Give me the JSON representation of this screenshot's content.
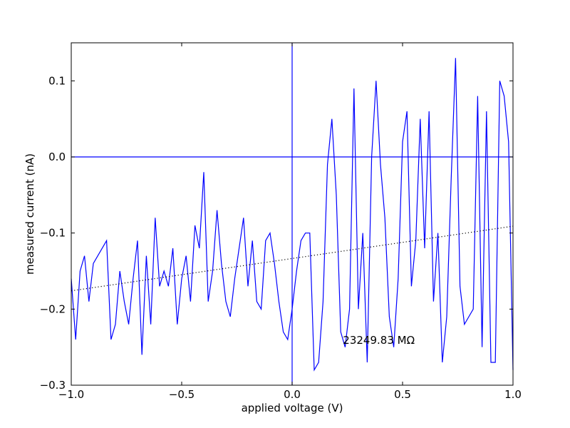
{
  "chart_data": {
    "type": "line",
    "title": "",
    "xlabel": "applied voltage (V)",
    "ylabel": "measured current (nA)",
    "xlim": [
      -1.0,
      1.0
    ],
    "ylim": [
      -0.3,
      0.15
    ],
    "xticks": [
      -1.0,
      -0.5,
      0.0,
      0.5,
      1.0
    ],
    "xtick_labels": [
      "−1.0",
      "−0.5",
      "0.0",
      "0.5",
      "1.0"
    ],
    "yticks": [
      -0.3,
      -0.2,
      -0.1,
      0.0,
      0.1
    ],
    "ytick_labels": [
      "−0.3",
      "−0.2",
      "−0.1",
      "0.0",
      "0.1"
    ],
    "grid": false,
    "line_color": "#0000ff",
    "fit_color": "#000000",
    "series": [
      {
        "style": "solid",
        "x": [
          -1.0,
          -0.98,
          -0.96,
          -0.94,
          -0.92,
          -0.9,
          -0.84,
          -0.82,
          -0.8,
          -0.78,
          -0.76,
          -0.74,
          -0.72,
          -0.7,
          -0.68,
          -0.66,
          -0.64,
          -0.62,
          -0.6,
          -0.58,
          -0.56,
          -0.54,
          -0.52,
          -0.5,
          -0.48,
          -0.46,
          -0.44,
          -0.42,
          -0.4,
          -0.38,
          -0.36,
          -0.34,
          -0.32,
          -0.3,
          -0.28,
          -0.26,
          -0.24,
          -0.22,
          -0.2,
          -0.18,
          -0.16,
          -0.14,
          -0.12,
          -0.1,
          -0.08,
          -0.06,
          -0.04,
          -0.02,
          0.0,
          0.02,
          0.04,
          0.06,
          0.08,
          0.1,
          0.12,
          0.14,
          0.16,
          0.18,
          0.2,
          0.22,
          0.24,
          0.26,
          0.28,
          0.3,
          0.32,
          0.34,
          0.36,
          0.38,
          0.4,
          0.42,
          0.44,
          0.46,
          0.48,
          0.5,
          0.52,
          0.54,
          0.56,
          0.58,
          0.6,
          0.62,
          0.64,
          0.66,
          0.68,
          0.7,
          0.72,
          0.74,
          0.76,
          0.78,
          0.8,
          0.82,
          0.84,
          0.86,
          0.88,
          0.9,
          0.92,
          0.94,
          0.96,
          0.98,
          1.0
        ],
        "y": [
          -0.16,
          -0.24,
          -0.15,
          -0.13,
          -0.19,
          -0.14,
          -0.11,
          -0.24,
          -0.22,
          -0.15,
          -0.19,
          -0.22,
          -0.16,
          -0.11,
          -0.26,
          -0.13,
          -0.22,
          -0.08,
          -0.17,
          -0.15,
          -0.17,
          -0.12,
          -0.22,
          -0.16,
          -0.13,
          -0.19,
          -0.09,
          -0.12,
          -0.02,
          -0.19,
          -0.15,
          -0.07,
          -0.14,
          -0.19,
          -0.21,
          -0.16,
          -0.12,
          -0.08,
          -0.17,
          -0.11,
          -0.19,
          -0.2,
          -0.11,
          -0.1,
          -0.14,
          -0.19,
          -0.23,
          -0.24,
          -0.2,
          -0.15,
          -0.11,
          -0.1,
          -0.1,
          -0.28,
          -0.27,
          -0.19,
          -0.01,
          0.05,
          -0.05,
          -0.23,
          -0.25,
          -0.2,
          0.09,
          -0.2,
          -0.1,
          -0.27,
          0.0,
          0.1,
          -0.01,
          -0.08,
          -0.21,
          -0.25,
          -0.16,
          0.02,
          0.06,
          -0.17,
          -0.11,
          0.05,
          -0.12,
          0.06,
          -0.19,
          -0.1,
          -0.27,
          -0.21,
          -0.03,
          0.13,
          -0.17,
          -0.22,
          -0.21,
          -0.2,
          0.08,
          -0.25,
          0.06,
          -0.27,
          -0.27,
          0.1,
          0.08,
          0.02,
          -0.28
        ]
      },
      {
        "style": "dotted",
        "x": [
          -1.0,
          1.0
        ],
        "y": [
          -0.176,
          -0.091
        ]
      }
    ],
    "reference_lines": {
      "horizontal_y": 0.0,
      "vertical_x": 0.0
    },
    "annotation": {
      "text": "23249.83 MΩ",
      "x": 0.23,
      "y": -0.24
    }
  }
}
